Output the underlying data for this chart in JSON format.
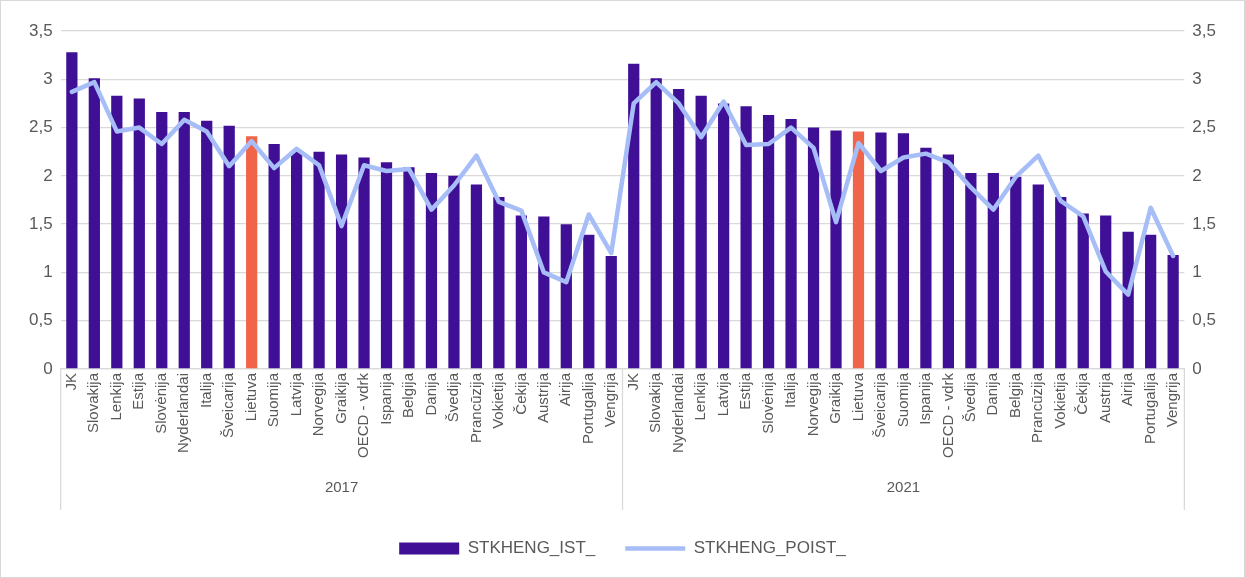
{
  "chart_data": {
    "type": "bar",
    "categories": [
      "JK",
      "Slovakija",
      "Lenkija",
      "Estija",
      "Slovėnija",
      "Nyderlandai",
      "Italija",
      "Šveicarija",
      "Lietuva",
      "Suomija",
      "Latvija",
      "Norvegija",
      "Graikija",
      "OECD - vdrk",
      "Ispanija",
      "Belgija",
      "Danija",
      "Švedija",
      "Prancūzija",
      "Vokietija",
      "Čekija",
      "Austrija",
      "Airija",
      "Portugalija",
      "Vengrija",
      "JK",
      "Slovakija",
      "Nyderlandai",
      "Lenkija",
      "Latvija",
      "Estija",
      "Slovėnija",
      "Italija",
      "Norvegija",
      "Graikija",
      "Lietuva",
      "Šveicarija",
      "Suomija",
      "Ispanija",
      "OECD - vdrk",
      "Švedija",
      "Danija",
      "Belgija",
      "Prancūzija",
      "Vokietija",
      "Čekija",
      "Austrija",
      "Airija",
      "Portugalija",
      "Vengrija"
    ],
    "series": [
      {
        "name": "STKHENG_IST_",
        "color": "#3f0f96",
        "colors": [
          "#3f0f96",
          "#3f0f96",
          "#3f0f96",
          "#3f0f96",
          "#3f0f96",
          "#3f0f96",
          "#3f0f96",
          "#3f0f96",
          "#f0644a",
          "#3f0f96",
          "#3f0f96",
          "#3f0f96",
          "#3f0f96",
          "#3f0f96",
          "#3f0f96",
          "#3f0f96",
          "#3f0f96",
          "#3f0f96",
          "#3f0f96",
          "#3f0f96",
          "#3f0f96",
          "#3f0f96",
          "#3f0f96",
          "#3f0f96",
          "#3f0f96",
          "#3f0f96",
          "#3f0f96",
          "#3f0f96",
          "#3f0f96",
          "#3f0f96",
          "#3f0f96",
          "#3f0f96",
          "#3f0f96",
          "#3f0f96",
          "#3f0f96",
          "#f0644a",
          "#3f0f96",
          "#3f0f96",
          "#3f0f96",
          "#3f0f96",
          "#3f0f96",
          "#3f0f96",
          "#3f0f96",
          "#3f0f96",
          "#3f0f96",
          "#3f0f96",
          "#3f0f96",
          "#3f0f96",
          "#3f0f96",
          "#3f0f96"
        ],
        "values": [
          3.28,
          3.01,
          2.83,
          2.8,
          2.66,
          2.66,
          2.57,
          2.52,
          2.41,
          2.33,
          2.25,
          2.25,
          2.22,
          2.19,
          2.14,
          2.09,
          2.03,
          2.0,
          1.91,
          1.78,
          1.59,
          1.58,
          1.5,
          1.39,
          1.17,
          3.16,
          3.01,
          2.9,
          2.83,
          2.75,
          2.72,
          2.63,
          2.59,
          2.5,
          2.47,
          2.46,
          2.45,
          2.44,
          2.29,
          2.22,
          2.03,
          2.03,
          1.99,
          1.91,
          1.78,
          1.61,
          1.59,
          1.42,
          1.39,
          1.18
        ]
      },
      {
        "name": "STKHENG_POIST_",
        "type": "line",
        "axis": "y2",
        "color": "#a6bdf7",
        "values": [
          2.87,
          2.97,
          2.46,
          2.5,
          2.33,
          2.58,
          2.46,
          2.1,
          2.36,
          2.08,
          2.28,
          2.11,
          1.48,
          2.11,
          2.05,
          2.07,
          1.65,
          1.9,
          2.21,
          1.73,
          1.64,
          1.0,
          0.9,
          1.6,
          1.2,
          2.75,
          2.97,
          2.75,
          2.4,
          2.77,
          2.32,
          2.33,
          2.5,
          2.29,
          1.52,
          2.34,
          2.05,
          2.19,
          2.23,
          2.14,
          1.88,
          1.65,
          1.99,
          2.21,
          1.74,
          1.58,
          1.01,
          0.77,
          1.67,
          1.17
        ]
      }
    ],
    "ylim": [
      0,
      3.5
    ],
    "yticks": [
      0,
      {
        "value": 0.5,
        "label": "0,5"
      },
      1,
      {
        "value": 1.5,
        "label": "1,5"
      },
      2,
      {
        "value": 2.5,
        "label": "2,5"
      },
      3,
      {
        "value": 3.5,
        "label": "3,5"
      }
    ],
    "y2lim": [
      0,
      3.5
    ],
    "y2ticks": [
      0,
      {
        "value": 0.5,
        "label": "0,5"
      },
      1,
      {
        "value": 1.5,
        "label": "1,5"
      },
      2,
      {
        "value": 2.5,
        "label": "2,5"
      },
      3,
      {
        "value": 3.5,
        "label": "3,5"
      }
    ],
    "annotations": [
      "2017",
      "2021"
    ],
    "grid": "y",
    "legend": "bottom",
    "line_style": "solid",
    "marker": "none"
  }
}
